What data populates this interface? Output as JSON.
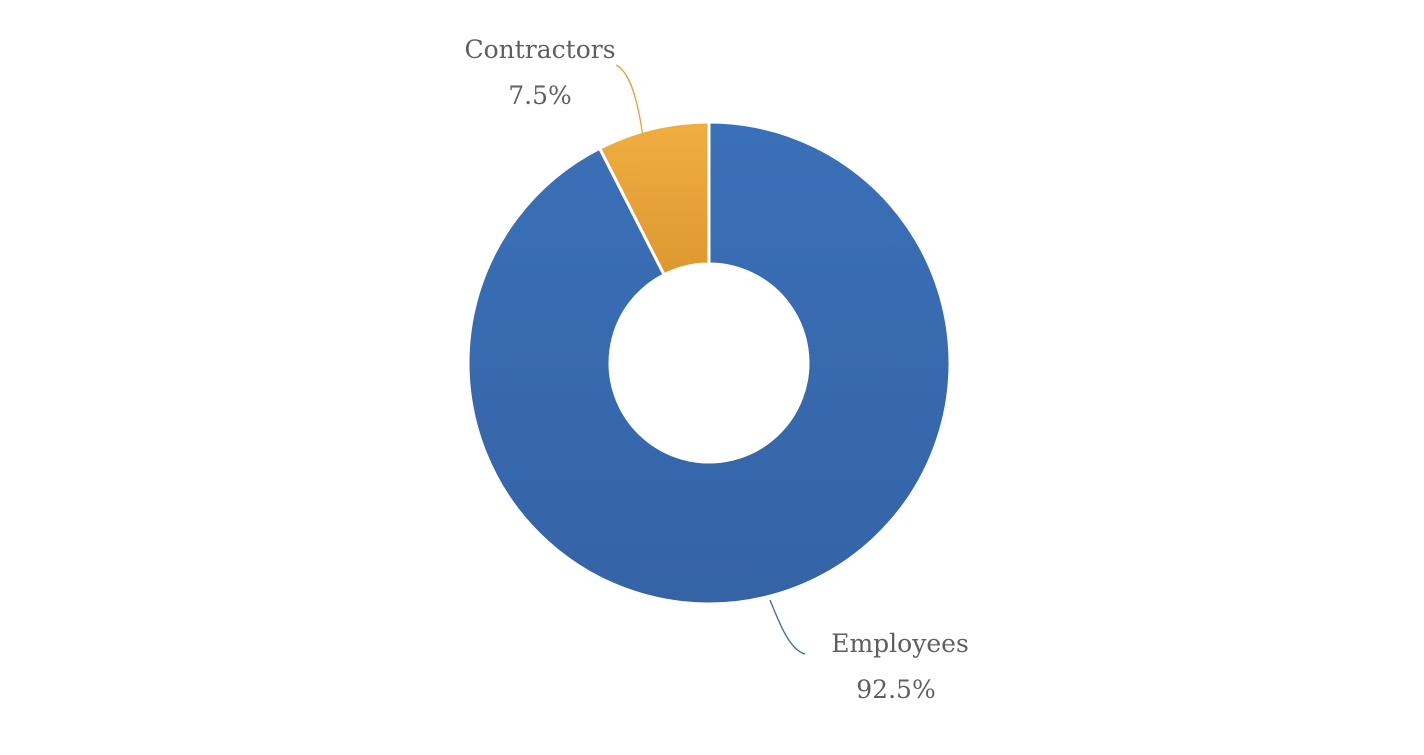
{
  "chart_data": {
    "type": "pie",
    "variant": "donut",
    "slices": [
      {
        "label": "Contractors",
        "value": 7.5,
        "percent_label": "7.5%",
        "color": "#E9A23B"
      },
      {
        "label": "Employees",
        "value": 92.5,
        "percent_label": "92.5%",
        "color": "#386BB0"
      }
    ]
  }
}
